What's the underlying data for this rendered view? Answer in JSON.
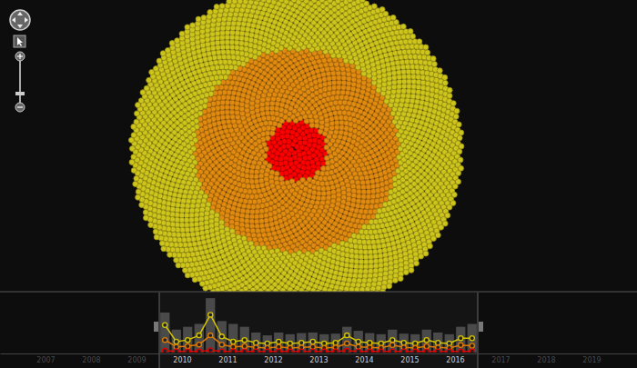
{
  "chart_data": {
    "type": "line",
    "x": [
      2010.125,
      2010.375,
      2010.625,
      2010.875,
      2011.125,
      2011.375,
      2011.625,
      2011.875,
      2012.125,
      2012.375,
      2012.625,
      2012.875,
      2013.125,
      2013.375,
      2013.625,
      2013.875,
      2014.125,
      2014.375,
      2014.625,
      2014.875,
      2015.125,
      2015.375,
      2015.625,
      2015.875,
      2016.125,
      2016.375,
      2016.625,
      2016.875
    ],
    "series": [
      {
        "type": "bar",
        "color": "#4a4a4a",
        "values": [
          70,
          40,
          45,
          50,
          95,
          55,
          50,
          45,
          35,
          30,
          35,
          32,
          34,
          35,
          32,
          33,
          45,
          38,
          34,
          32,
          40,
          33,
          32,
          40,
          35,
          32,
          45,
          50
        ]
      },
      {
        "type": "line",
        "color": "#d4c400",
        "marker": "circle",
        "values": [
          48,
          19,
          22,
          30,
          66,
          28,
          19,
          22,
          17,
          16,
          19,
          16,
          17,
          19,
          16,
          17,
          30,
          19,
          17,
          16,
          22,
          17,
          16,
          22,
          17,
          16,
          25,
          25
        ]
      },
      {
        "type": "line",
        "color": "#e07b00",
        "marker": "circle",
        "values": [
          22,
          10,
          11,
          14,
          30,
          14,
          10,
          11,
          9,
          8,
          10,
          8,
          9,
          10,
          8,
          9,
          16,
          10,
          9,
          8,
          13,
          9,
          8,
          11,
          9,
          8,
          13,
          12
        ]
      },
      {
        "type": "line",
        "color": "#e00000",
        "marker": "circle",
        "values": [
          3,
          2,
          2,
          2,
          4,
          2,
          2,
          2,
          2,
          2,
          2,
          2,
          2,
          2,
          2,
          2,
          3,
          2,
          2,
          2,
          2,
          2,
          2,
          2,
          2,
          2,
          2,
          2
        ]
      }
    ],
    "xlim": [
      2006.5,
      2020.5
    ],
    "xticks": [
      {
        "value": 2007.5,
        "label": "2007"
      },
      {
        "value": 2008.5,
        "label": "2008"
      },
      {
        "value": 2009.5,
        "label": "2009"
      },
      {
        "value": 2010.5,
        "label": "2010"
      },
      {
        "value": 2011.5,
        "label": "2011"
      },
      {
        "value": 2012.5,
        "label": "2012"
      },
      {
        "value": 2013.5,
        "label": "2013"
      },
      {
        "value": 2014.5,
        "label": "2014"
      },
      {
        "value": 2015.5,
        "label": "2015"
      },
      {
        "value": 2016.5,
        "label": "2016"
      },
      {
        "value": 2017.5,
        "label": "2017"
      },
      {
        "value": 2018.5,
        "label": "2018"
      },
      {
        "value": 2019.5,
        "label": "2019"
      }
    ],
    "ylim": [
      0,
      100
    ],
    "tick_labels": "x",
    "selected_range": [
      2010,
      2017
    ]
  },
  "network": {
    "rings": [
      {
        "color": "#ff0000",
        "count": 120
      },
      {
        "color": "#e08a10",
        "count": 1280
      },
      {
        "color": "#cdc41c",
        "count": 2300
      }
    ]
  }
}
